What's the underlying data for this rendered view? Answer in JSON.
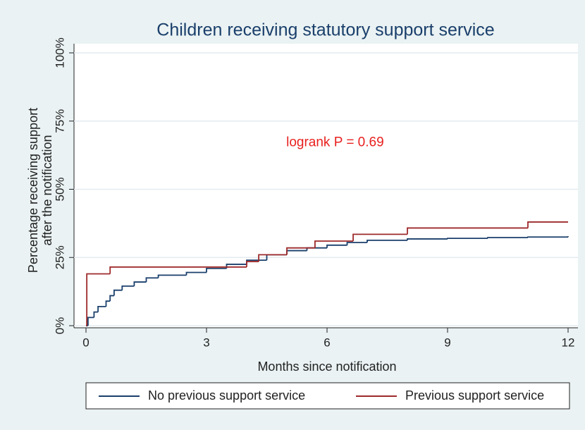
{
  "chart_data": {
    "type": "step",
    "title": "Children receiving statutory support service",
    "xlabel": "Months since notification",
    "ylabel": [
      "Percentage receiving support",
      "after the notification"
    ],
    "annotation": "logrank P = 0.69",
    "annotation_color": "#e8211f",
    "xlim": [
      0,
      12
    ],
    "xticks": [
      0,
      3,
      6,
      9,
      12
    ],
    "ylim": [
      -1,
      104
    ],
    "yticks": [
      {
        "value": 0,
        "label": "0%"
      },
      {
        "value": 25,
        "label": "25%"
      },
      {
        "value": 50,
        "label": "50%"
      },
      {
        "value": 75,
        "label": "75%"
      },
      {
        "value": 100,
        "label": "100%"
      }
    ],
    "grid": true,
    "series": [
      {
        "name": "No previous support service",
        "color": "#1a3f6b",
        "x": [
          0,
          0.05,
          0.2,
          0.3,
          0.5,
          0.6,
          0.7,
          0.9,
          1.2,
          1.5,
          1.8,
          2.5,
          3,
          3.5,
          4,
          4.5,
          5,
          5.5,
          6,
          6.5,
          7,
          8,
          9,
          10,
          11,
          12
        ],
        "values": [
          0,
          3,
          5,
          7,
          9,
          11,
          13,
          14.5,
          16,
          17.5,
          18.5,
          19.5,
          21,
          22.5,
          24,
          26,
          27.5,
          28.5,
          29.5,
          30.5,
          31.3,
          31.8,
          32,
          32.3,
          32.5,
          32.8
        ]
      },
      {
        "name": "Previous support service",
        "color": "#9e2a2b",
        "x": [
          0,
          0.02,
          0.6,
          4.0,
          4.3,
          5.0,
          5.7,
          6.65,
          8.0,
          11.0,
          12
        ],
        "values": [
          0,
          19,
          21.5,
          23.5,
          26,
          28.5,
          31,
          33.5,
          35.8,
          38,
          38
        ]
      }
    ]
  }
}
